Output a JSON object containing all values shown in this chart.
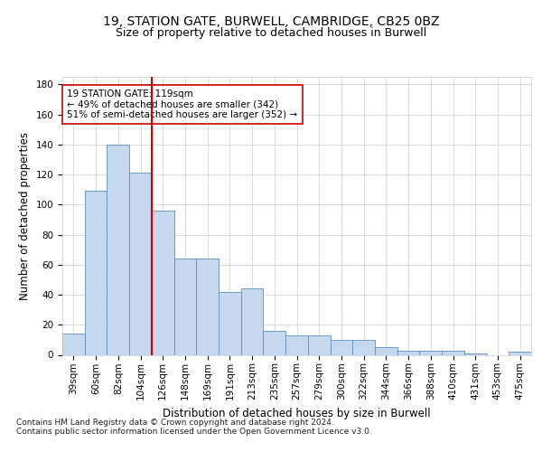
{
  "title1": "19, STATION GATE, BURWELL, CAMBRIDGE, CB25 0BZ",
  "title2": "Size of property relative to detached houses in Burwell",
  "xlabel": "Distribution of detached houses by size in Burwell",
  "ylabel": "Number of detached properties",
  "categories": [
    "39sqm",
    "60sqm",
    "82sqm",
    "104sqm",
    "126sqm",
    "148sqm",
    "169sqm",
    "191sqm",
    "213sqm",
    "235sqm",
    "257sqm",
    "279sqm",
    "300sqm",
    "322sqm",
    "344sqm",
    "366sqm",
    "388sqm",
    "410sqm",
    "431sqm",
    "453sqm",
    "475sqm"
  ],
  "values": [
    14,
    109,
    140,
    121,
    96,
    64,
    64,
    42,
    44,
    16,
    13,
    13,
    10,
    10,
    5,
    3,
    3,
    3,
    1,
    0,
    2
  ],
  "bar_color": "#c5d8ed",
  "bar_edge_color": "#5a8fc0",
  "vline_x": 3.5,
  "vline_color": "#cc0000",
  "annotation_text": "19 STATION GATE: 119sqm\n← 49% of detached houses are smaller (342)\n51% of semi-detached houses are larger (352) →",
  "annotation_box_color": "#ffffff",
  "annotation_box_edge": "#cc0000",
  "ylim": [
    0,
    185
  ],
  "yticks": [
    0,
    20,
    40,
    60,
    80,
    100,
    120,
    140,
    160,
    180
  ],
  "background_color": "#ffffff",
  "grid_color": "#cccccc",
  "footer_text": "Contains HM Land Registry data © Crown copyright and database right 2024.\nContains public sector information licensed under the Open Government Licence v3.0.",
  "title1_fontsize": 10,
  "title2_fontsize": 9,
  "xlabel_fontsize": 8.5,
  "ylabel_fontsize": 8.5,
  "footer_fontsize": 6.5,
  "tick_fontsize": 7.5,
  "annot_fontsize": 7.5
}
